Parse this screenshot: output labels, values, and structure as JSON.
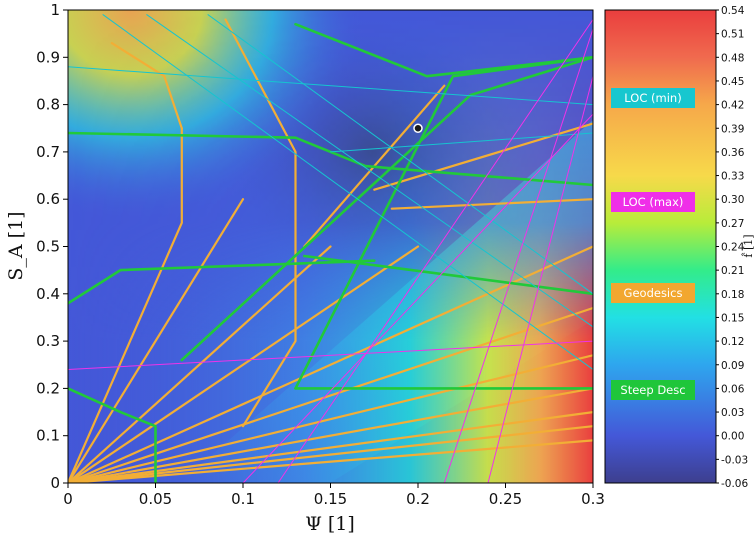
{
  "chart_data": {
    "type": "heatmap",
    "xlabel": "Ψ [1]",
    "ylabel": "S_A [1]",
    "xlim": [
      0,
      0.3
    ],
    "ylim": [
      0,
      1
    ],
    "x_ticks": [
      "0",
      "0.05",
      "0.1",
      "0.15",
      "0.2",
      "0.25",
      "0.3"
    ],
    "y_ticks": [
      "0",
      "0.1",
      "0.2",
      "0.3",
      "0.4",
      "0.5",
      "0.6",
      "0.7",
      "0.8",
      "0.9",
      "1"
    ],
    "colorbar": {
      "label": "f̂ [1]",
      "range": [
        -0.06,
        0.54
      ],
      "ticks": [
        "-0.06",
        "-0.03",
        "0.00",
        "0.03",
        "0.06",
        "0.09",
        "0.12",
        "0.15",
        "0.18",
        "0.21",
        "0.24",
        "0.27",
        "0.30",
        "0.33",
        "0.36",
        "0.39",
        "0.42",
        "0.45",
        "0.48",
        "0.51",
        "0.54"
      ],
      "colors": [
        "#3d3f8e",
        "#4458d8",
        "#2ea6ee",
        "#22e0e4",
        "#33ec8a",
        "#b8ec3a",
        "#f7d94a",
        "#f6a84a",
        "#f06a4e",
        "#ea3e3e"
      ]
    },
    "legend": {
      "placement": "inside colorbar",
      "entries": [
        {
          "label": "LOC (min)",
          "color": "#17c7cf"
        },
        {
          "label": "LOC (max)",
          "color": "#ef2ee8"
        },
        {
          "label": "Geodesics",
          "color": "#f2a72f"
        },
        {
          "label": "Steep Desc",
          "color": "#1fc63a"
        }
      ]
    },
    "series": [
      {
        "type": "line",
        "color": "#f2ae36",
        "x": [
          0,
          0.3
        ],
        "y": [
          0,
          0.09
        ]
      },
      {
        "type": "line",
        "color": "#f2ae36",
        "x": [
          0,
          0.3
        ],
        "y": [
          0,
          0.12
        ]
      },
      {
        "type": "line",
        "color": "#f2ae36",
        "x": [
          0,
          0.3
        ],
        "y": [
          0,
          0.15
        ]
      },
      {
        "type": "line",
        "color": "#f2ae36",
        "x": [
          0,
          0.3
        ],
        "y": [
          0,
          0.2
        ]
      },
      {
        "type": "line",
        "color": "#f2ae36",
        "x": [
          0,
          0.3
        ],
        "y": [
          0,
          0.27
        ]
      },
      {
        "type": "line",
        "color": "#f2ae36",
        "x": [
          0,
          0.3
        ],
        "y": [
          0,
          0.37
        ]
      },
      {
        "type": "line",
        "color": "#f2ae36",
        "x": [
          0,
          0.3
        ],
        "y": [
          0,
          0.5
        ]
      },
      {
        "type": "line",
        "color": "#f2ae36",
        "x": [
          0,
          0.2
        ],
        "y": [
          0,
          0.5
        ]
      },
      {
        "type": "line",
        "color": "#f2ae36",
        "x": [
          0,
          0.15
        ],
        "y": [
          0,
          0.5
        ]
      },
      {
        "type": "line",
        "color": "#f2ae36",
        "x": [
          0,
          0.1
        ],
        "y": [
          0,
          0.6
        ]
      },
      {
        "type": "line",
        "color": "#f2ae36",
        "x": [
          0,
          0.065,
          0.065
        ],
        "y": [
          0,
          0.55,
          0.75
        ]
      },
      {
        "type": "line",
        "color": "#f2ae36",
        "x": [
          0.025,
          0.055,
          0.065
        ],
        "y": [
          0.93,
          0.86,
          0.75
        ]
      },
      {
        "type": "line",
        "color": "#f2ae36",
        "x": [
          0.1,
          0.13,
          0.13,
          0.09
        ],
        "y": [
          0.12,
          0.3,
          0.7,
          0.98
        ]
      },
      {
        "type": "line",
        "color": "#f2ae36",
        "x": [
          0.175,
          0.3
        ],
        "y": [
          0.62,
          0.76
        ]
      },
      {
        "type": "line",
        "color": "#f2ae36",
        "x": [
          0.185,
          0.3
        ],
        "y": [
          0.58,
          0.6
        ]
      },
      {
        "type": "line",
        "color": "#f2ae36",
        "x": [
          0.135,
          0.215
        ],
        "y": [
          0.5,
          0.84
        ]
      },
      {
        "type": "line",
        "color": "#21c93a",
        "x": [
          0.05,
          0.05,
          0.03,
          0
        ],
        "y": [
          0,
          0.12,
          0.15,
          0.2
        ]
      },
      {
        "type": "line",
        "color": "#21c93a",
        "x": [
          0,
          0.03,
          0.175
        ],
        "y": [
          0.38,
          0.45,
          0.47
        ]
      },
      {
        "type": "line",
        "color": "#21c93a",
        "x": [
          0,
          0.13,
          0.17,
          0.3
        ],
        "y": [
          0.74,
          0.73,
          0.67,
          0.63
        ]
      },
      {
        "type": "line",
        "color": "#21c93a",
        "x": [
          0.13,
          0.205,
          0.3
        ],
        "y": [
          0.97,
          0.86,
          0.9
        ]
      },
      {
        "type": "line",
        "color": "#21c93a",
        "x": [
          0.065,
          0.23,
          0.3
        ],
        "y": [
          0.26,
          0.82,
          0.9
        ]
      },
      {
        "type": "line",
        "color": "#21c93a",
        "x": [
          0.13,
          0.22,
          0.3
        ],
        "y": [
          0.2,
          0.86,
          0.9
        ]
      },
      {
        "type": "line",
        "color": "#21c93a",
        "x": [
          0.13,
          0.3
        ],
        "y": [
          0.2,
          0.2
        ]
      },
      {
        "type": "line",
        "color": "#21c93a",
        "x": [
          0.135,
          0.3
        ],
        "y": [
          0.48,
          0.4
        ]
      },
      {
        "type": "line",
        "color": "#16c4d0",
        "x": [
          0.02,
          0.3
        ],
        "y": [
          0.99,
          0.24
        ]
      },
      {
        "type": "line",
        "color": "#16c4d0",
        "x": [
          0.045,
          0.3
        ],
        "y": [
          0.99,
          0.33
        ]
      },
      {
        "type": "line",
        "color": "#16c4d0",
        "x": [
          0.08,
          0.3
        ],
        "y": [
          0.99,
          0.4
        ]
      },
      {
        "type": "line",
        "color": "#16c4d0",
        "x": [
          0,
          0.3
        ],
        "y": [
          0.88,
          0.8
        ]
      },
      {
        "type": "line",
        "color": "#16c4d0",
        "x": [
          0.15,
          0.3
        ],
        "y": [
          0.7,
          0.74
        ]
      },
      {
        "type": "line",
        "color": "#ef33e9",
        "x": [
          0.24,
          0.3
        ],
        "y": [
          0,
          0.86
        ]
      },
      {
        "type": "line",
        "color": "#ef33e9",
        "x": [
          0.215,
          0.3
        ],
        "y": [
          0,
          0.96
        ]
      },
      {
        "type": "line",
        "color": "#ef33e9",
        "x": [
          0.12,
          0.3
        ],
        "y": [
          0,
          0.98
        ]
      },
      {
        "type": "line",
        "color": "#ef33e9",
        "x": [
          0.1,
          0.3
        ],
        "y": [
          0,
          0.78
        ]
      },
      {
        "type": "line",
        "color": "#ef33e9",
        "x": [
          0,
          0.3
        ],
        "y": [
          0.24,
          0.3
        ]
      }
    ],
    "marker": {
      "x": 0.2,
      "y": 0.75
    }
  }
}
